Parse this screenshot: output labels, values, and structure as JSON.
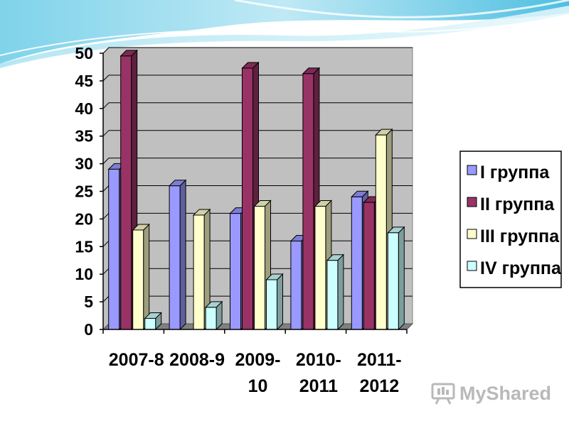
{
  "chart_data": {
    "type": "bar",
    "categories": [
      [
        "2007-8"
      ],
      [
        "2008-9"
      ],
      [
        "2009-",
        "10"
      ],
      [
        "2010-",
        "2011"
      ],
      [
        "2011-",
        "2012"
      ]
    ],
    "series": [
      {
        "name": "I группа",
        "values": [
          29,
          26,
          21,
          16,
          24
        ],
        "color": "#9999ff"
      },
      {
        "name": "II группа",
        "values": [
          49.5,
          null,
          47.3,
          46.3,
          23
        ],
        "color": "#993366"
      },
      {
        "name": "III группа",
        "values": [
          18,
          20.7,
          22.3,
          22.3,
          35.2
        ],
        "color": "#ffffcc"
      },
      {
        "name": "IV группа",
        "values": [
          2,
          4,
          9,
          12.5,
          17.5
        ],
        "color": "#ccffff"
      }
    ],
    "yticks": [
      "0",
      "5",
      "10",
      "15",
      "20",
      "25",
      "30",
      "35",
      "40",
      "45",
      "50"
    ],
    "ylim": [
      0,
      50
    ],
    "grid": true,
    "legend": "right",
    "plot_background": "#c0c0c0",
    "title": "",
    "xlabel": "",
    "ylabel": ""
  },
  "watermark": {
    "text": "MyShared"
  }
}
